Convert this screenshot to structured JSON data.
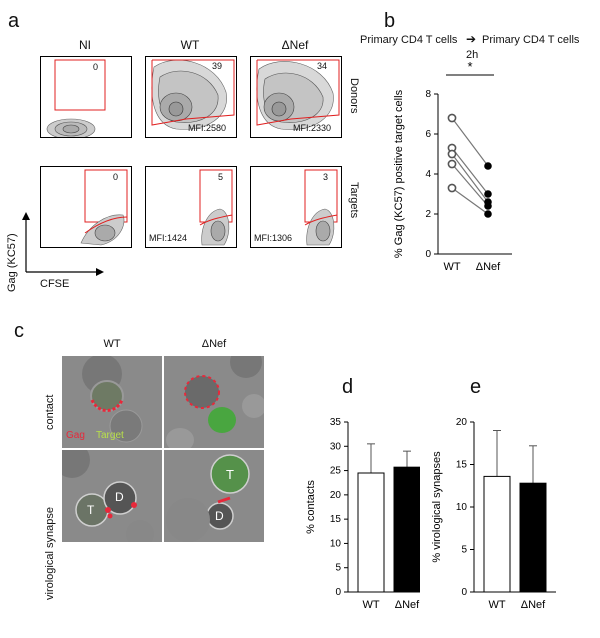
{
  "panel_a": {
    "letter": "a",
    "columns": [
      "NI",
      "WT",
      "ΔNef"
    ],
    "row_labels": [
      "Donors",
      "Targets"
    ],
    "axis_y": "Gag (KC57)",
    "axis_x": "CFSE",
    "donors": [
      {
        "gate": "0",
        "mfi": ""
      },
      {
        "gate": "39",
        "mfi": "MFI:2580"
      },
      {
        "gate": "34",
        "mfi": "MFI:2330"
      }
    ],
    "targets": [
      {
        "gate": "0",
        "mfi": ""
      },
      {
        "gate": "5",
        "mfi": "MFI:1424"
      },
      {
        "gate": "3",
        "mfi": "MFI:1306"
      }
    ]
  },
  "panel_b": {
    "letter": "b",
    "header_left": "Primary CD4 T cells",
    "header_right": "Primary CD4 T cells",
    "header_time": "2h",
    "significance": "*"
  },
  "panel_c": {
    "letter": "c",
    "columns": [
      "WT",
      "ΔNef"
    ],
    "rows": [
      "contact",
      "virological synapse"
    ],
    "legend_gag": "Gag",
    "legend_target": "Target",
    "cell_T": "T",
    "cell_D": "D"
  },
  "panel_d": {
    "letter": "d"
  },
  "panel_e": {
    "letter": "e"
  },
  "colors": {
    "gate": "#e02020",
    "wt_fill": "#ffffff",
    "nef_fill": "#000000",
    "gag_red": "#e8283a",
    "target_green": "#7cc24a"
  },
  "chart_data": [
    {
      "id": "b",
      "type": "scatter",
      "categories": [
        "WT",
        "ΔNef"
      ],
      "ylabel": "% Gag (KC57) positive target cells",
      "ylim": [
        0,
        8
      ],
      "yticks": [
        "0",
        "2",
        "4",
        "6",
        "8"
      ],
      "pairs": [
        [
          6.8,
          4.4
        ],
        [
          5.3,
          3.0
        ],
        [
          5.0,
          2.6
        ],
        [
          4.5,
          2.4
        ],
        [
          3.3,
          2.0
        ]
      ]
    },
    {
      "id": "d",
      "type": "bar",
      "categories": [
        "WT",
        "ΔNef"
      ],
      "values": [
        24.5,
        25.7
      ],
      "errors": [
        6.0,
        3.3
      ],
      "ylabel": "% contacts",
      "ylim": [
        0,
        35
      ],
      "yticks": [
        "0",
        "5",
        "10",
        "15",
        "20",
        "25",
        "30",
        "35"
      ]
    },
    {
      "id": "e",
      "type": "bar",
      "categories": [
        "WT",
        "ΔNef"
      ],
      "values": [
        13.6,
        12.8
      ],
      "errors": [
        5.4,
        4.4
      ],
      "ylabel": "% virological synapses",
      "ylim": [
        0,
        20
      ],
      "yticks": [
        "0",
        "5",
        "10",
        "15",
        "20"
      ]
    }
  ]
}
